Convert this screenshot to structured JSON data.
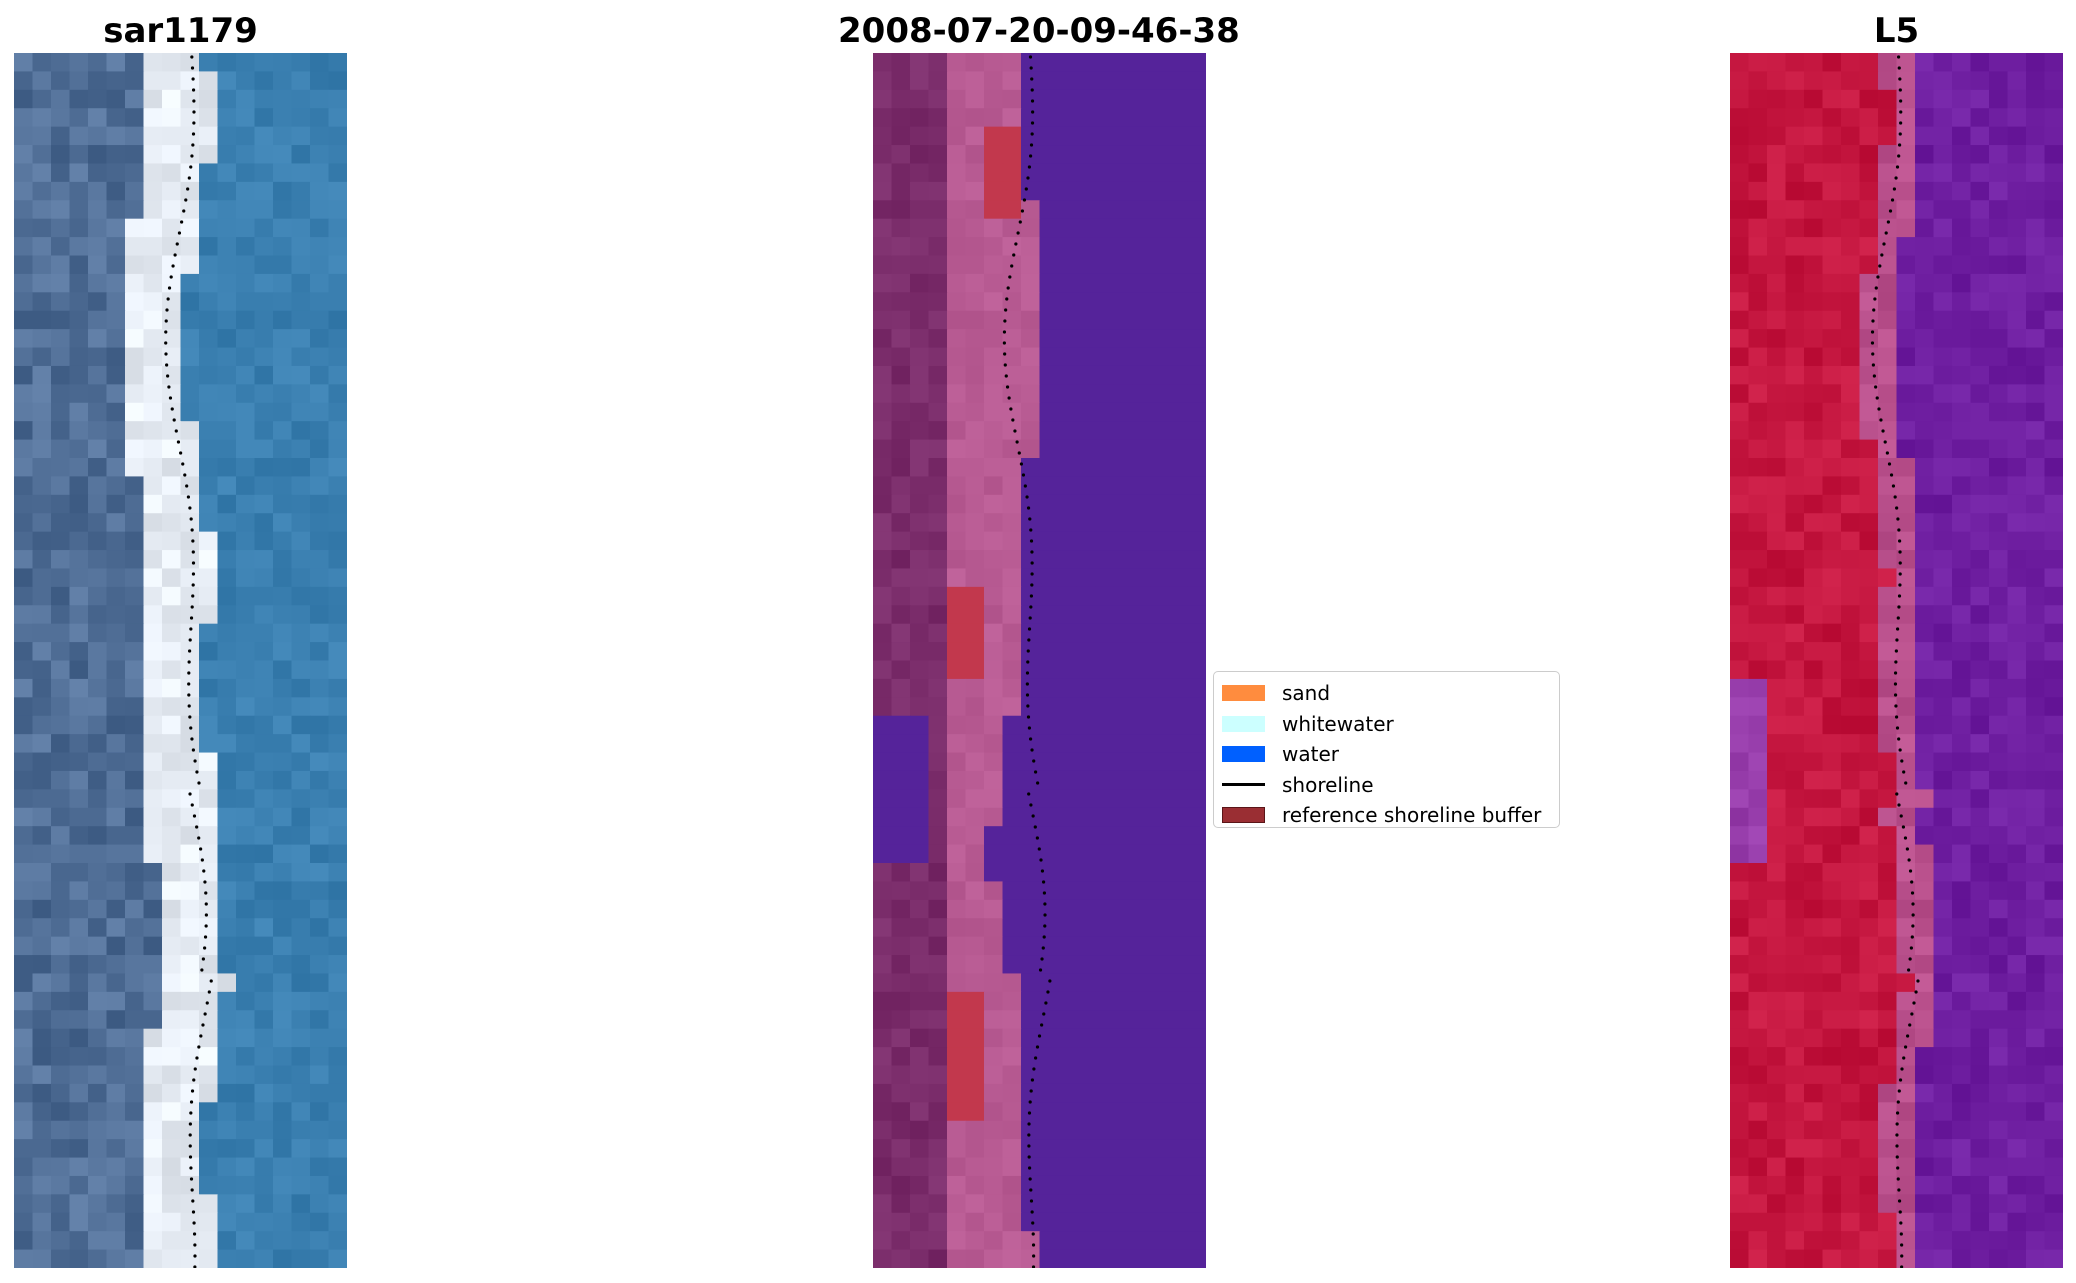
{
  "panels": [
    {
      "id": "rgb",
      "title": "sar1179"
    },
    {
      "id": "classified",
      "title": "2008-07-20-09-46-38"
    },
    {
      "id": "index",
      "title": "L5"
    }
  ],
  "legend": {
    "items": [
      {
        "label": "sand",
        "color": "#ff8c3e",
        "kind": "patch"
      },
      {
        "label": "whitewater",
        "color": "#ccffff",
        "kind": "patch"
      },
      {
        "label": "water",
        "color": "#0060ff",
        "kind": "patch"
      },
      {
        "label": "shoreline",
        "color": "#000000",
        "kind": "line"
      },
      {
        "label": "reference shoreline buffer",
        "color": "#9a2e33",
        "kind": "patch"
      }
    ]
  },
  "colors": {
    "sea_blue": "#3a7fb0",
    "class_water_purple": "#55239a",
    "class_land": "#7a2c6a",
    "class_pink": "#b85b93",
    "class_buffer_red": "#c2384d",
    "index_red": "#c4163f",
    "index_purple": "#6e1ea0"
  }
}
